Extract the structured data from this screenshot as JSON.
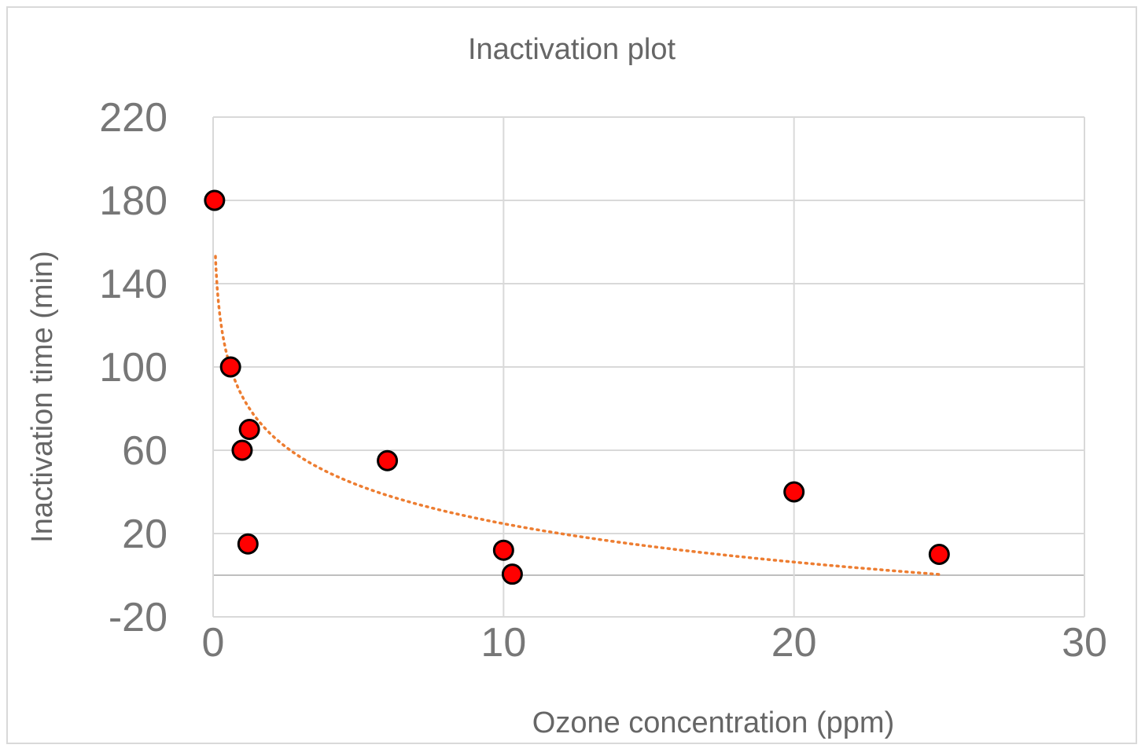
{
  "chart_data": {
    "type": "scatter",
    "title": "Inactivation plot",
    "xlabel": "Ozone concentration (ppm)",
    "ylabel": "Inactivation time (min)",
    "xlim": [
      0,
      30
    ],
    "ylim": [
      -20,
      220
    ],
    "x_ticks": [
      "0",
      "10",
      "20",
      "30"
    ],
    "y_ticks": [
      "220",
      "180",
      "140",
      "100",
      "60",
      "20",
      "-20"
    ],
    "grid": true,
    "legend": "none",
    "points": [
      {
        "x": 0.05,
        "y": 180
      },
      {
        "x": 0.6,
        "y": 100
      },
      {
        "x": 1.0,
        "y": 60
      },
      {
        "x": 1.25,
        "y": 70
      },
      {
        "x": 1.2,
        "y": 15
      },
      {
        "x": 6.0,
        "y": 55
      },
      {
        "x": 10.0,
        "y": 12
      },
      {
        "x": 10.3,
        "y": 0.5
      },
      {
        "x": 20.0,
        "y": 40
      },
      {
        "x": 25.0,
        "y": 10
      }
    ],
    "trendline": {
      "type": "logarithmic",
      "style": "dotted",
      "x_range": [
        0.01,
        25
      ],
      "a": 20.8,
      "b": -46.6
    },
    "colors": {
      "marker_fill": "#ff0000",
      "marker_stroke": "#000000",
      "trendline": "#ed7d31",
      "grid": "#d9d9d9",
      "text": "#666666"
    }
  }
}
